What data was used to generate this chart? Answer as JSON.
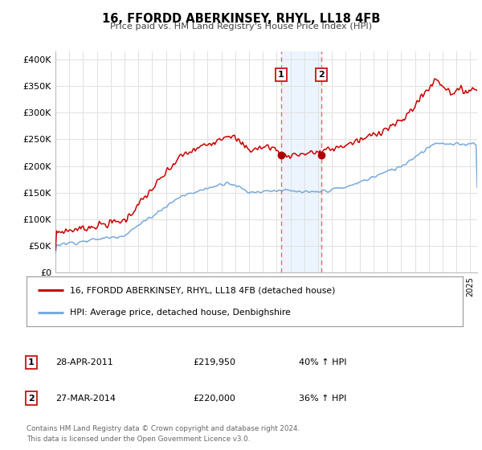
{
  "title": "16, FFORDD ABERKINSEY, RHYL, LL18 4FB",
  "subtitle": "Price paid vs. HM Land Registry's House Price Index (HPI)",
  "ylabel_ticks": [
    "£0",
    "£50K",
    "£100K",
    "£150K",
    "£200K",
    "£250K",
    "£300K",
    "£350K",
    "£400K"
  ],
  "ytick_values": [
    0,
    50000,
    100000,
    150000,
    200000,
    250000,
    300000,
    350000,
    400000
  ],
  "ylim": [
    0,
    415000
  ],
  "xlim_start": 1995.0,
  "xlim_end": 2025.5,
  "sale1_x": 2011.32,
  "sale1_y": 219950,
  "sale2_x": 2014.24,
  "sale2_y": 220000,
  "sale1_date": "28-APR-2011",
  "sale1_price": "£219,950",
  "sale1_hpi": "40% ↑ HPI",
  "sale2_date": "27-MAR-2014",
  "sale2_price": "£220,000",
  "sale2_hpi": "36% ↑ HPI",
  "red_line_color": "#cc0000",
  "blue_line_color": "#7aaadd",
  "marker_color": "#aa0000",
  "vline_color": "#ee6666",
  "shade_color": "#ddeeff",
  "legend_line1": "16, FFORDD ABERKINSEY, RHYL, LL18 4FB (detached house)",
  "legend_line2": "HPI: Average price, detached house, Denbighshire",
  "sale1_label": "1",
  "sale2_label": "2",
  "footnote1": "Contains HM Land Registry data © Crown copyright and database right 2024.",
  "footnote2": "This data is licensed under the Open Government Licence v3.0.",
  "background_color": "#ffffff",
  "grid_color": "#e0e0e0"
}
